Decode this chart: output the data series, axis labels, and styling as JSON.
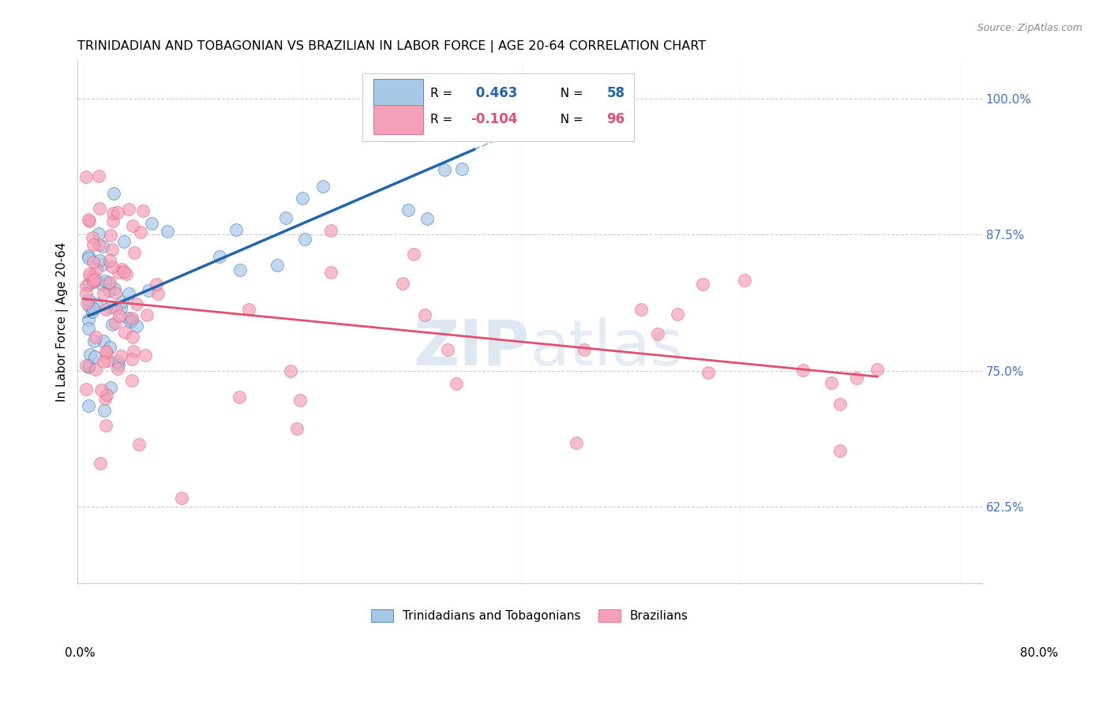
{
  "title": "TRINIDADIAN AND TOBAGONIAN VS BRAZILIAN IN LABOR FORCE | AGE 20-64 CORRELATION CHART",
  "source": "Source: ZipAtlas.com",
  "ylabel": "In Labor Force | Age 20-64",
  "ytick_labels": [
    "62.5%",
    "75.0%",
    "87.5%",
    "100.0%"
  ],
  "ytick_values": [
    0.625,
    0.75,
    0.875,
    1.0
  ],
  "ylim": [
    0.555,
    1.035
  ],
  "xlim": [
    -0.005,
    0.82
  ],
  "legend1_r": "0.463",
  "legend1_n": "58",
  "legend2_r": "-0.104",
  "legend2_n": "96",
  "color_blue": "#a8c8e8",
  "color_pink": "#f4a0b8",
  "trendline_blue": "#2166ac",
  "trendline_pink": "#e05070",
  "ytick_color": "#4472c4",
  "watermark_color": "#c8d8ea",
  "seed_blue": 10,
  "seed_pink": 20
}
